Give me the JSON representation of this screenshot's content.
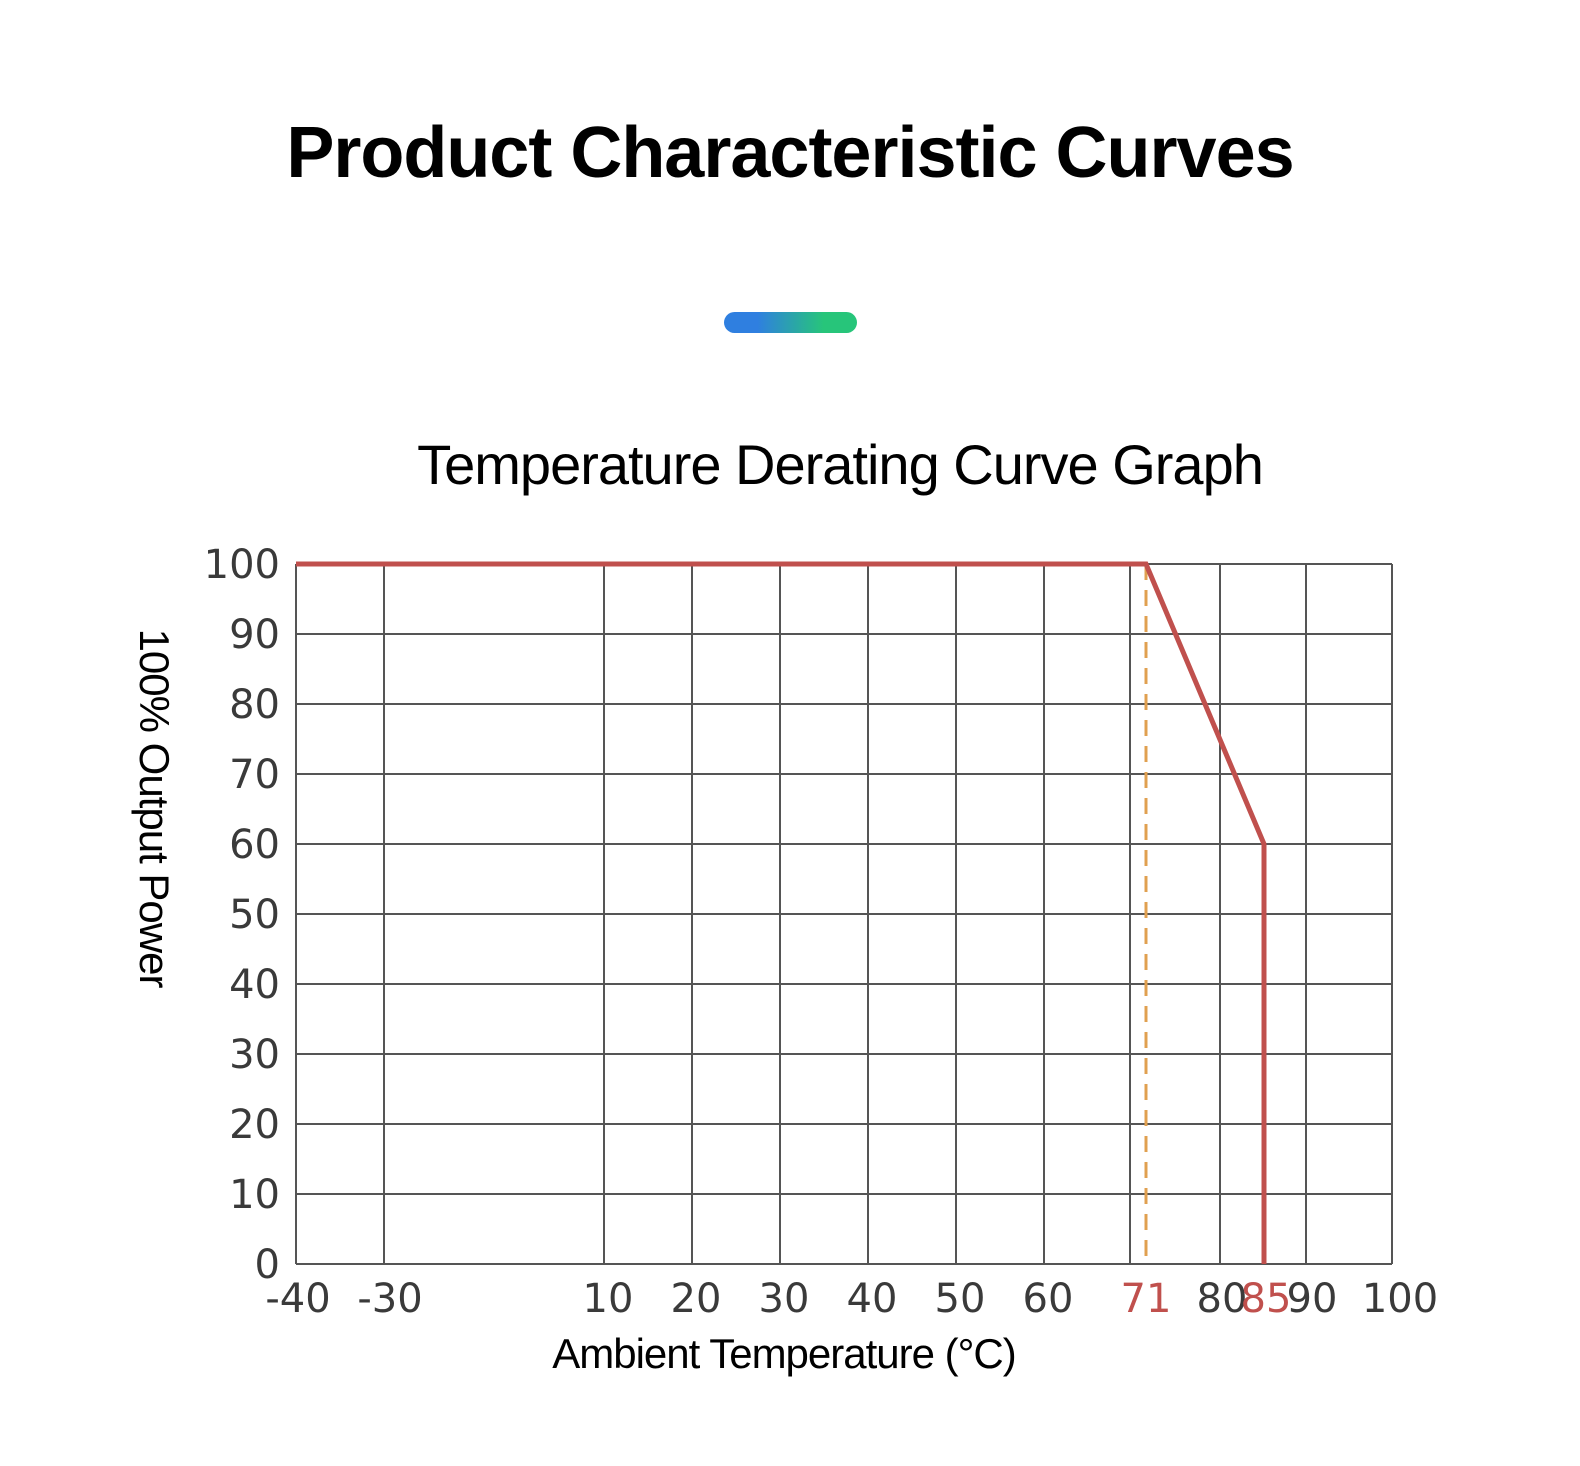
{
  "page": {
    "heading": "Product Characteristic Curves",
    "accent_bar_colors": [
      "#2f7fe0",
      "#27c57a"
    ]
  },
  "chart_data": {
    "type": "line",
    "title": "Temperature Derating Curve Graph",
    "xlabel": "Ambient Temperature (°C)",
    "ylabel": "100% Output Power",
    "xlim": [
      -40,
      100
    ],
    "ylim": [
      0,
      100
    ],
    "x_ticks": [
      {
        "value": -40,
        "label": "-40"
      },
      {
        "value": -30,
        "label": "-30"
      },
      {
        "value": -5,
        "label": ""
      },
      {
        "value": 10,
        "label": "10"
      },
      {
        "value": 20,
        "label": "20"
      },
      {
        "value": 30,
        "label": "30"
      },
      {
        "value": 40,
        "label": "40"
      },
      {
        "value": 50,
        "label": "50"
      },
      {
        "value": 60,
        "label": "60"
      },
      {
        "value": 71,
        "label": "71",
        "highlight": true
      },
      {
        "value": 80,
        "label": "80"
      },
      {
        "value": 85,
        "label": "85",
        "highlight": true
      },
      {
        "value": 90,
        "label": "90"
      },
      {
        "value": 100,
        "label": "100"
      }
    ],
    "y_ticks": [
      0,
      10,
      20,
      30,
      40,
      50,
      60,
      70,
      80,
      90,
      100
    ],
    "grid": true,
    "series": [
      {
        "color": "#c0504d",
        "points": [
          [
            -40,
            100
          ],
          [
            71,
            100
          ],
          [
            85,
            60
          ],
          [
            85,
            0
          ]
        ]
      }
    ],
    "reference_lines": [
      {
        "x": 71,
        "style": "dashed",
        "color": "#e0a050"
      }
    ],
    "colors": {
      "grid": "#555555",
      "tick_label": "#3a3a3a",
      "highlight_tick": "#c0504d"
    }
  }
}
